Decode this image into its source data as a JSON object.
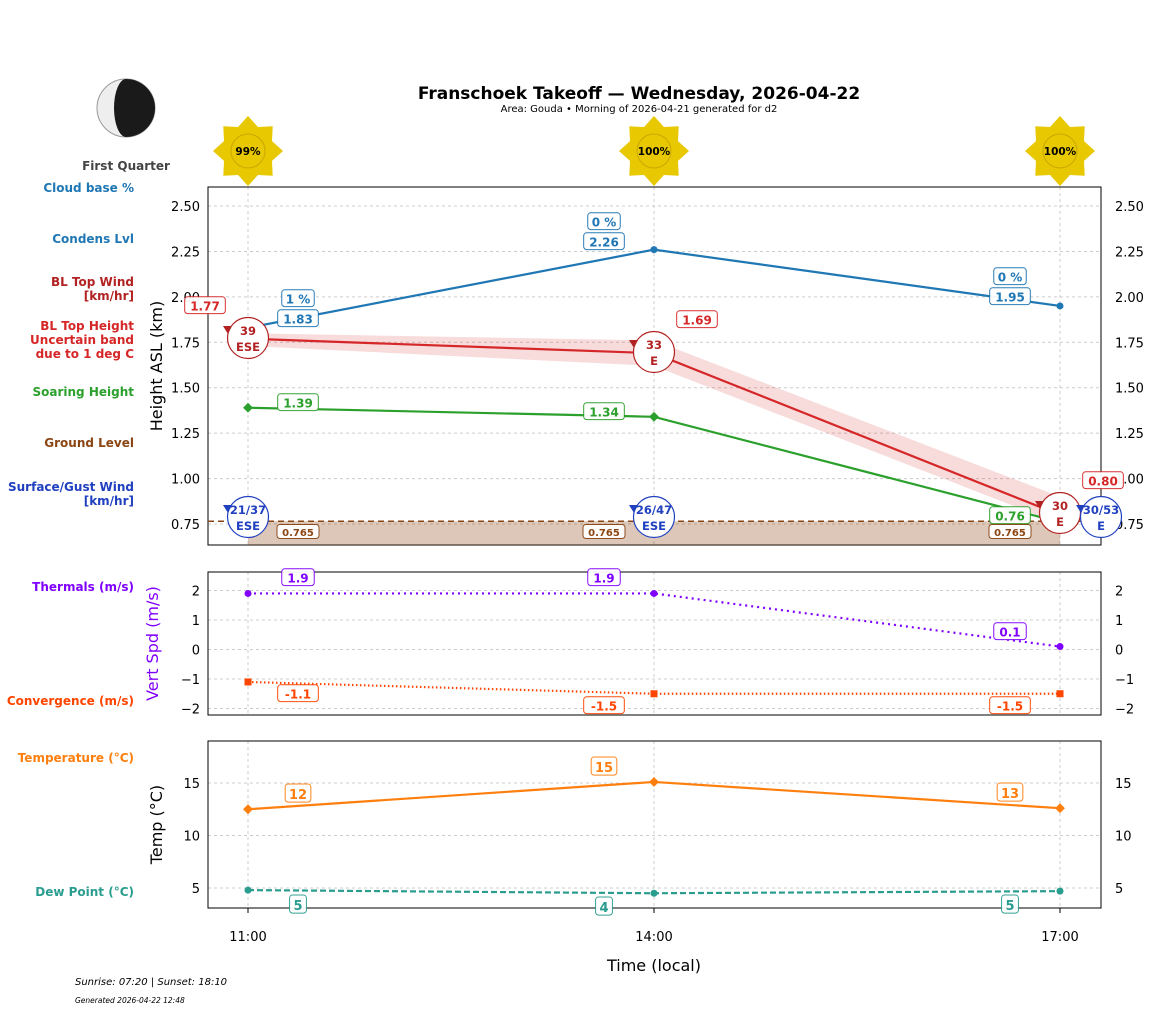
{
  "title": "Franschoek Takeoff — Wednesday, 2026-04-22",
  "subtitle": "Area: Gouda • Morning of 2026-04-21 generated for d2",
  "moon_phase": "First Quarter",
  "footer": {
    "sun": "Sunrise: 07:20 | Sunset: 18:10",
    "generated": "Generated 2026-04-22 12:48"
  },
  "colors": {
    "cloud": "#1f77b4",
    "bl_top": "#d62728",
    "bl_wind": "#b22222",
    "soaring": "#2ca02c",
    "ground": "#8b4513",
    "surface": "#2040c0",
    "thermal": "#8000ff",
    "convergence": "#ff4500",
    "temp": "#ff7f0e",
    "dew": "#2a9d8f"
  },
  "side_labels": {
    "cloud": "Cloud base %",
    "condens": "Condens Lvl",
    "bl_wind": [
      "BL Top Wind",
      "[km/hr]"
    ],
    "bl_top": [
      "BL Top Height",
      "Uncertain band",
      "due to 1 deg C"
    ],
    "soaring": "Soaring Height",
    "ground": "Ground Level",
    "surface": [
      "Surface/Gust Wind",
      "[km/hr]"
    ],
    "thermals": "Thermals (m/s)",
    "convergence": "Convergence (m/s)",
    "temp": "Temperature (°C)",
    "dew": "Dew Point (°C)"
  },
  "chart_data": [
    {
      "type": "line",
      "ylabel": "Height ASL (km)",
      "ylim": [
        0.63,
        2.61
      ],
      "yticks": [
        "0.75",
        "1.00",
        "1.25",
        "1.50",
        "1.75",
        "2.00",
        "2.25",
        "2.50"
      ],
      "x": [
        "11:00",
        "14:00",
        "17:00"
      ],
      "sun_percent": [
        "99%",
        "100%",
        "100%"
      ],
      "grid": true,
      "series": [
        {
          "key": "cloud",
          "values": [
            1.83,
            2.26,
            1.95
          ],
          "labels": [
            "1.83",
            "2.26",
            "1.95"
          ],
          "cloud_pct": [
            "1 %",
            "0 %",
            "0 %"
          ]
        },
        {
          "key": "bl_top",
          "values": [
            1.77,
            1.69,
            0.8
          ],
          "labels": [
            "1.77",
            "1.69",
            "0.80"
          ],
          "band_low": [
            1.73,
            1.62,
            0.75
          ],
          "band_high": [
            1.8,
            1.76,
            0.9
          ]
        },
        {
          "key": "soaring",
          "values": [
            1.39,
            1.34,
            0.76
          ],
          "labels": [
            "1.39",
            "1.34",
            "0.76"
          ]
        },
        {
          "key": "ground",
          "values": [
            0.765,
            0.765,
            0.765
          ],
          "labels": [
            "0.765",
            "0.765",
            "0.765"
          ]
        }
      ],
      "bl_wind": [
        {
          "speed": "39",
          "dir": "ESE"
        },
        {
          "speed": "33",
          "dir": "E"
        },
        {
          "speed": "30",
          "dir": "E"
        }
      ],
      "surface_wind": [
        {
          "speed": "21/37",
          "dir": "ESE"
        },
        {
          "speed": "26/47",
          "dir": "ESE"
        },
        {
          "speed": "30/53",
          "dir": "E"
        }
      ]
    },
    {
      "type": "line",
      "ylabel": "Vert Spd (m/s)",
      "ylim": [
        -2.2,
        2.6
      ],
      "yticks": [
        "−2",
        "−1",
        "0",
        "1",
        "2"
      ],
      "series": [
        {
          "key": "thermal",
          "values": [
            1.9,
            1.9,
            0.1
          ],
          "labels": [
            "1.9",
            "1.9",
            "0.1"
          ]
        },
        {
          "key": "convergence",
          "values": [
            -1.1,
            -1.5,
            -1.5
          ],
          "labels": [
            "-1.1",
            "-1.5",
            "-1.5"
          ]
        }
      ]
    },
    {
      "type": "line",
      "ylabel": "Temp (°C)",
      "xlabel": "Time (local)",
      "ylim": [
        3.2,
        19.0
      ],
      "yticks": [
        "5",
        "10",
        "15"
      ],
      "series": [
        {
          "key": "temp",
          "values": [
            12.5,
            15.1,
            12.6
          ],
          "labels": [
            "12",
            "15",
            "13"
          ]
        },
        {
          "key": "dew",
          "values": [
            4.8,
            4.5,
            4.7
          ],
          "labels": [
            "5",
            "4",
            "5"
          ]
        }
      ]
    }
  ]
}
